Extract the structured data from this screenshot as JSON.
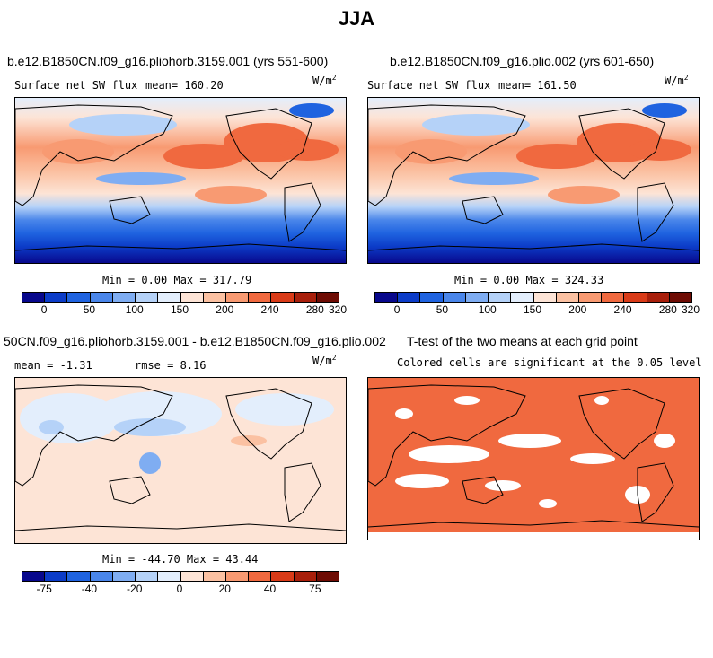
{
  "title": "JJA",
  "units": {
    "base": "W/m",
    "exp": "2"
  },
  "panels": [
    {
      "title": "b.e12.B1850CN.f09_g16.pliohorb.3159.001 (yrs 551-600)",
      "subtitle": "Surface net SW flux",
      "mean_text": "mean= 160.20",
      "minmax_text": "Min =   0.00 Max = 317.79"
    },
    {
      "title": "b.e12.B1850CN.f09_g16.plio.002 (yrs 601-650)",
      "subtitle": "Surface net SW flux",
      "mean_text": "mean= 161.50",
      "minmax_text": "Min =   0.00 Max = 324.33"
    },
    {
      "title": "50CN.f09_g16.pliohorb.3159.001 - b.e12.B1850CN.f09_g16.plio.002",
      "mean_text": "mean =  -1.31",
      "rmse_text": "rmse =   8.16",
      "minmax_text": "Min = -44.70 Max =  43.44"
    },
    {
      "title": "T-test of the two means at each grid point",
      "subtitle": "Colored cells are significant at the 0.05 level"
    }
  ],
  "colorbar_abs": {
    "colors": [
      "#08088c",
      "#0c3cc8",
      "#1f63e0",
      "#4a86ea",
      "#7fadf2",
      "#b5d2f8",
      "#e3eefc",
      "#fde4d6",
      "#fbc1a2",
      "#f89a72",
      "#f0693f",
      "#d93b18",
      "#a81f0b",
      "#6e0c04"
    ],
    "labels": [
      "0",
      "50",
      "100",
      "150",
      "200",
      "240",
      "280",
      "320"
    ]
  },
  "colorbar_diff": {
    "colors": [
      "#08088c",
      "#0c3cc8",
      "#1f63e0",
      "#4a86ea",
      "#7fadf2",
      "#b5d2f8",
      "#e3eefc",
      "#fde4d6",
      "#fbc1a2",
      "#f89a72",
      "#f0693f",
      "#d93b18",
      "#a81f0b",
      "#6e0c04"
    ],
    "labels": [
      "-75",
      "-40",
      "-20",
      "0",
      "20",
      "40",
      "75"
    ]
  },
  "chart_data": [
    {
      "type": "heatmap",
      "title": "b.e12.B1850CN.f09_g16.pliohorb.3159.001 (yrs 551-600)",
      "variable": "Surface net SW flux",
      "units": "W/m2",
      "mean": 160.2,
      "min": 0.0,
      "max": 317.79,
      "levels": [
        0,
        25,
        50,
        75,
        100,
        125,
        150,
        175,
        200,
        220,
        240,
        260,
        280,
        300,
        320
      ]
    },
    {
      "type": "heatmap",
      "title": "b.e12.B1850CN.f09_g16.plio.002 (yrs 601-650)",
      "variable": "Surface net SW flux",
      "units": "W/m2",
      "mean": 161.5,
      "min": 0.0,
      "max": 324.33,
      "levels": [
        0,
        25,
        50,
        75,
        100,
        125,
        150,
        175,
        200,
        220,
        240,
        260,
        280,
        300,
        320
      ]
    },
    {
      "type": "heatmap",
      "title": "50CN.f09_g16.pliohorb.3159.001 - b.e12.B1850CN.f09_g16.plio.002",
      "units": "W/m2",
      "mean": -1.31,
      "rmse": 8.16,
      "min": -44.7,
      "max": 43.44,
      "levels": [
        -75,
        -40,
        -20,
        0,
        20,
        40,
        75
      ]
    },
    {
      "type": "heatmap",
      "title": "T-test of the two means at each grid point",
      "subtitle": "Colored cells are significant at the 0.05 level",
      "significance_level": 0.05
    }
  ]
}
